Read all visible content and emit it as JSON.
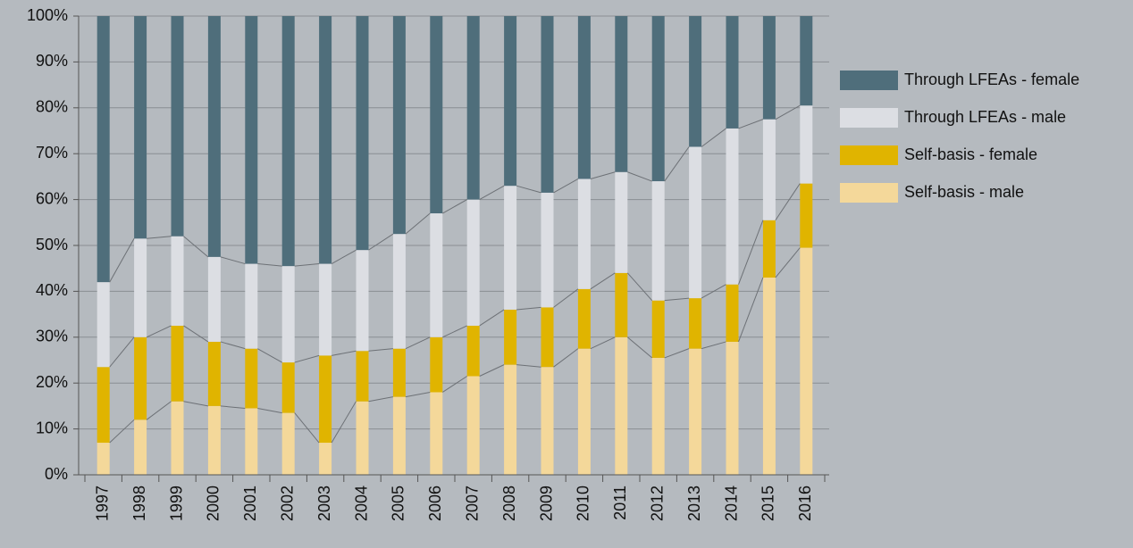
{
  "chart_data": {
    "type": "stacked_bar",
    "categories": [
      "1997",
      "1998",
      "1999",
      "2000",
      "2001",
      "2002",
      "2003",
      "2004",
      "2005",
      "2006",
      "2007",
      "2008",
      "2009",
      "2010",
      "2011",
      "2012",
      "2013",
      "2014",
      "2015",
      "2016"
    ],
    "series": [
      {
        "name": "Self-basis - male",
        "color": "#f4d89a",
        "values": [
          7,
          12,
          16,
          15,
          14.5,
          13.5,
          7,
          16,
          17,
          18,
          21.5,
          24,
          23.5,
          27.5,
          30,
          25.5,
          27.5,
          29,
          43,
          49.5
        ]
      },
      {
        "name": "Self-basis - female",
        "color": "#e0b400",
        "values": [
          16.5,
          18,
          16.5,
          14,
          13,
          11,
          19,
          11,
          10.5,
          12,
          11,
          12,
          13,
          13,
          14,
          12.5,
          11,
          12.5,
          12.5,
          14
        ]
      },
      {
        "name": "Through LFEAs - male",
        "color": "#dcdee3",
        "values": [
          18.5,
          21.5,
          19.5,
          18.5,
          18.5,
          21,
          20,
          22,
          25,
          27,
          27.5,
          27,
          25,
          24,
          22,
          26,
          33,
          34,
          22,
          17
        ]
      },
      {
        "name": "Through LFEAs - female",
        "color": "#4f6e7b",
        "values": [
          58,
          48.5,
          48,
          52.5,
          54,
          54.5,
          54,
          51,
          47.5,
          43,
          40,
          37,
          38.5,
          35.5,
          34,
          36,
          28.5,
          24.5,
          22.5,
          19.5
        ]
      }
    ],
    "ylim": [
      0,
      100
    ],
    "yticks": [
      {
        "value": 0,
        "label": "0%"
      },
      {
        "value": 10,
        "label": "10%"
      },
      {
        "value": 20,
        "label": "20%"
      },
      {
        "value": 30,
        "label": "30%"
      },
      {
        "value": 40,
        "label": "40%"
      },
      {
        "value": 50,
        "label": "50%"
      },
      {
        "value": 60,
        "label": "60%"
      },
      {
        "value": 70,
        "label": "70%"
      },
      {
        "value": 80,
        "label": "80%"
      },
      {
        "value": 90,
        "label": "90%"
      },
      {
        "value": 100,
        "label": "100%"
      }
    ],
    "grid": true,
    "legend": "right"
  }
}
